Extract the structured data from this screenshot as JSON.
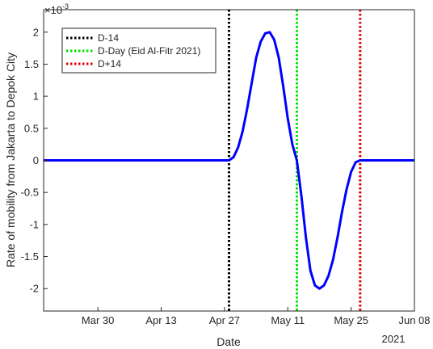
{
  "chart_data": {
    "type": "line",
    "xlabel": "Date",
    "ylabel": "Rate of mobility from Jakarta to Depok City",
    "exponent_label": "×10",
    "exponent_power": "-3",
    "year_label": "2021",
    "xlim": [
      "2021-03-18",
      "2021-06-08"
    ],
    "ylim": [
      -2.35,
      2.35
    ],
    "x_ticks": [
      {
        "date": "2021-03-30",
        "label": "Mar 30"
      },
      {
        "date": "2021-04-13",
        "label": "Apr 13"
      },
      {
        "date": "2021-04-27",
        "label": "Apr 27"
      },
      {
        "date": "2021-05-11",
        "label": "May 11"
      },
      {
        "date": "2021-05-25",
        "label": "May 25"
      },
      {
        "date": "2021-06-08",
        "label": "Jun 08"
      }
    ],
    "y_ticks": [
      {
        "value": 2,
        "label": "2"
      },
      {
        "value": 1.5,
        "label": "1.5"
      },
      {
        "value": 1,
        "label": "1"
      },
      {
        "value": 0.5,
        "label": "0.5"
      },
      {
        "value": 0,
        "label": "0"
      },
      {
        "value": -0.5,
        "label": "-0.5"
      },
      {
        "value": -1,
        "label": "-1"
      },
      {
        "value": -1.5,
        "label": "-1.5"
      },
      {
        "value": -2,
        "label": "-2"
      }
    ],
    "grid": false,
    "legend_position": "top-left",
    "vertical_lines": [
      {
        "name": "D-14",
        "date": "2021-04-28",
        "color": "#000000"
      },
      {
        "name": "D-Day (Eid Al-Fitr 2021)",
        "date": "2021-05-13",
        "color": "#00e000"
      },
      {
        "name": "D+14",
        "date": "2021-05-27",
        "color": "#e00000"
      }
    ],
    "series": [
      {
        "color": "#0000ff",
        "x": [
          "2021-03-18",
          "2021-04-28",
          "2021-04-29",
          "2021-04-30",
          "2021-05-01",
          "2021-05-02",
          "2021-05-03",
          "2021-05-04",
          "2021-05-05",
          "2021-05-06",
          "2021-05-07",
          "2021-05-08",
          "2021-05-09",
          "2021-05-10",
          "2021-05-11",
          "2021-05-12",
          "2021-05-13",
          "2021-05-14",
          "2021-05-15",
          "2021-05-16",
          "2021-05-17",
          "2021-05-18",
          "2021-05-19",
          "2021-05-20",
          "2021-05-21",
          "2021-05-22",
          "2021-05-23",
          "2021-05-24",
          "2021-05-25",
          "2021-05-26",
          "2021-05-27",
          "2021-06-08"
        ],
        "y": [
          0,
          0,
          0.05,
          0.2,
          0.45,
          0.8,
          1.2,
          1.6,
          1.85,
          1.98,
          2.0,
          1.88,
          1.6,
          1.15,
          0.65,
          0.25,
          0,
          -0.55,
          -1.2,
          -1.72,
          -1.95,
          -2.0,
          -1.95,
          -1.8,
          -1.55,
          -1.2,
          -0.8,
          -0.45,
          -0.18,
          -0.03,
          0,
          0
        ]
      }
    ]
  }
}
